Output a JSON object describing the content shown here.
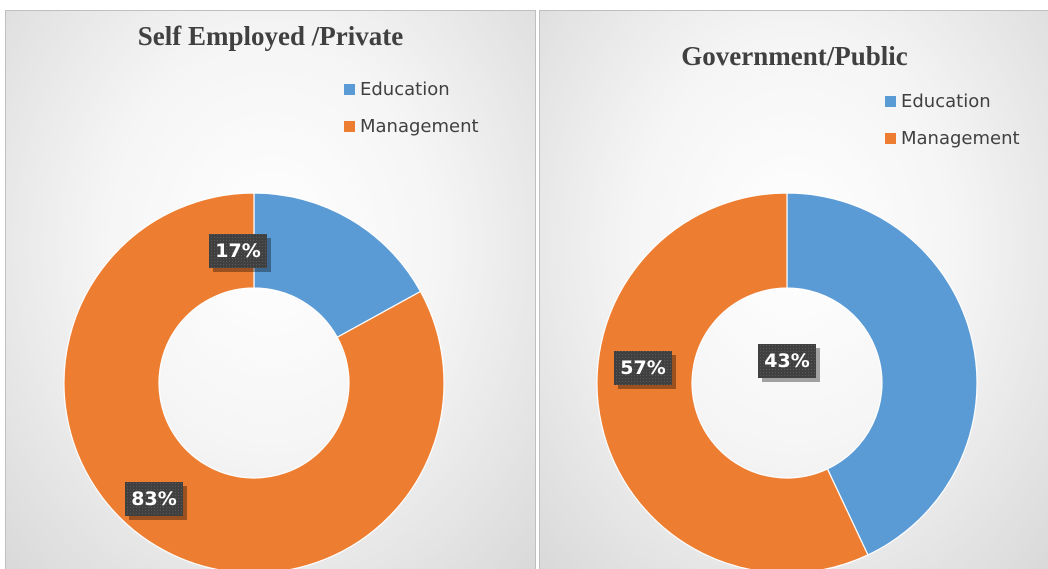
{
  "chart_data": [
    {
      "type": "pie",
      "subtype": "doughnut",
      "title": "Self Employed /Private",
      "categories": [
        "Education",
        "Management"
      ],
      "values": [
        17,
        83
      ],
      "data_labels": [
        "17%",
        "83%"
      ],
      "colors": [
        "#5b9bd5",
        "#ed7d31"
      ],
      "legend_position": "top-right",
      "legend": [
        "Education",
        "Management"
      ]
    },
    {
      "type": "pie",
      "subtype": "doughnut",
      "title": "Government/Public",
      "categories": [
        "Education",
        "Management"
      ],
      "values": [
        43,
        57
      ],
      "data_labels": [
        "43%",
        "57%"
      ],
      "colors": [
        "#5b9bd5",
        "#ed7d31"
      ],
      "legend_position": "top-right",
      "legend": [
        "Education",
        "Management"
      ]
    }
  ]
}
